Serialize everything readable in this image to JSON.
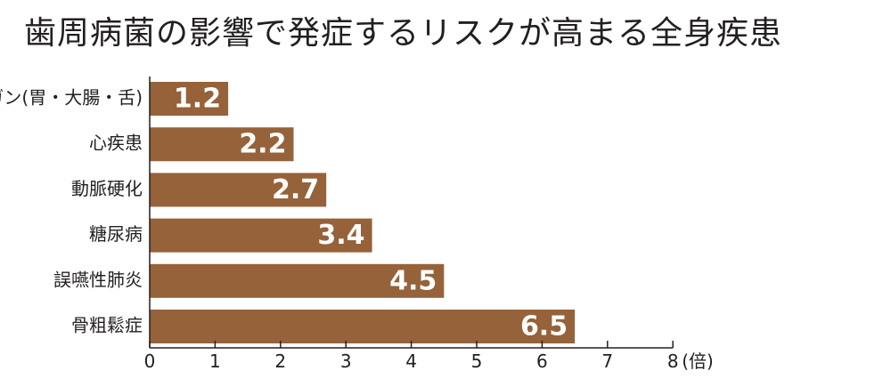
{
  "chart_data": {
    "type": "bar",
    "orientation": "horizontal",
    "title": "歯周病菌の影響で発症するリスクが高まる全身疾患",
    "categories": [
      "ガン(胃・大腸・舌)",
      "心疾患",
      "動脈硬化",
      "糖尿病",
      "誤嚥性肺炎",
      "骨粗鬆症"
    ],
    "values": [
      1.2,
      2.2,
      2.7,
      3.4,
      4.5,
      6.5
    ],
    "value_labels": [
      "1.2",
      "2.2",
      "2.7",
      "3.4",
      "4.5",
      "6.5"
    ],
    "xlim": [
      0,
      8
    ],
    "x_ticks": [
      "0",
      "1",
      "2",
      "3",
      "4",
      "5",
      "6",
      "7",
      "8"
    ],
    "x_unit": "(倍)",
    "xlabel": "",
    "ylabel": "",
    "grid": false,
    "bar_color": "#95623a",
    "text_color": "#231f20"
  }
}
